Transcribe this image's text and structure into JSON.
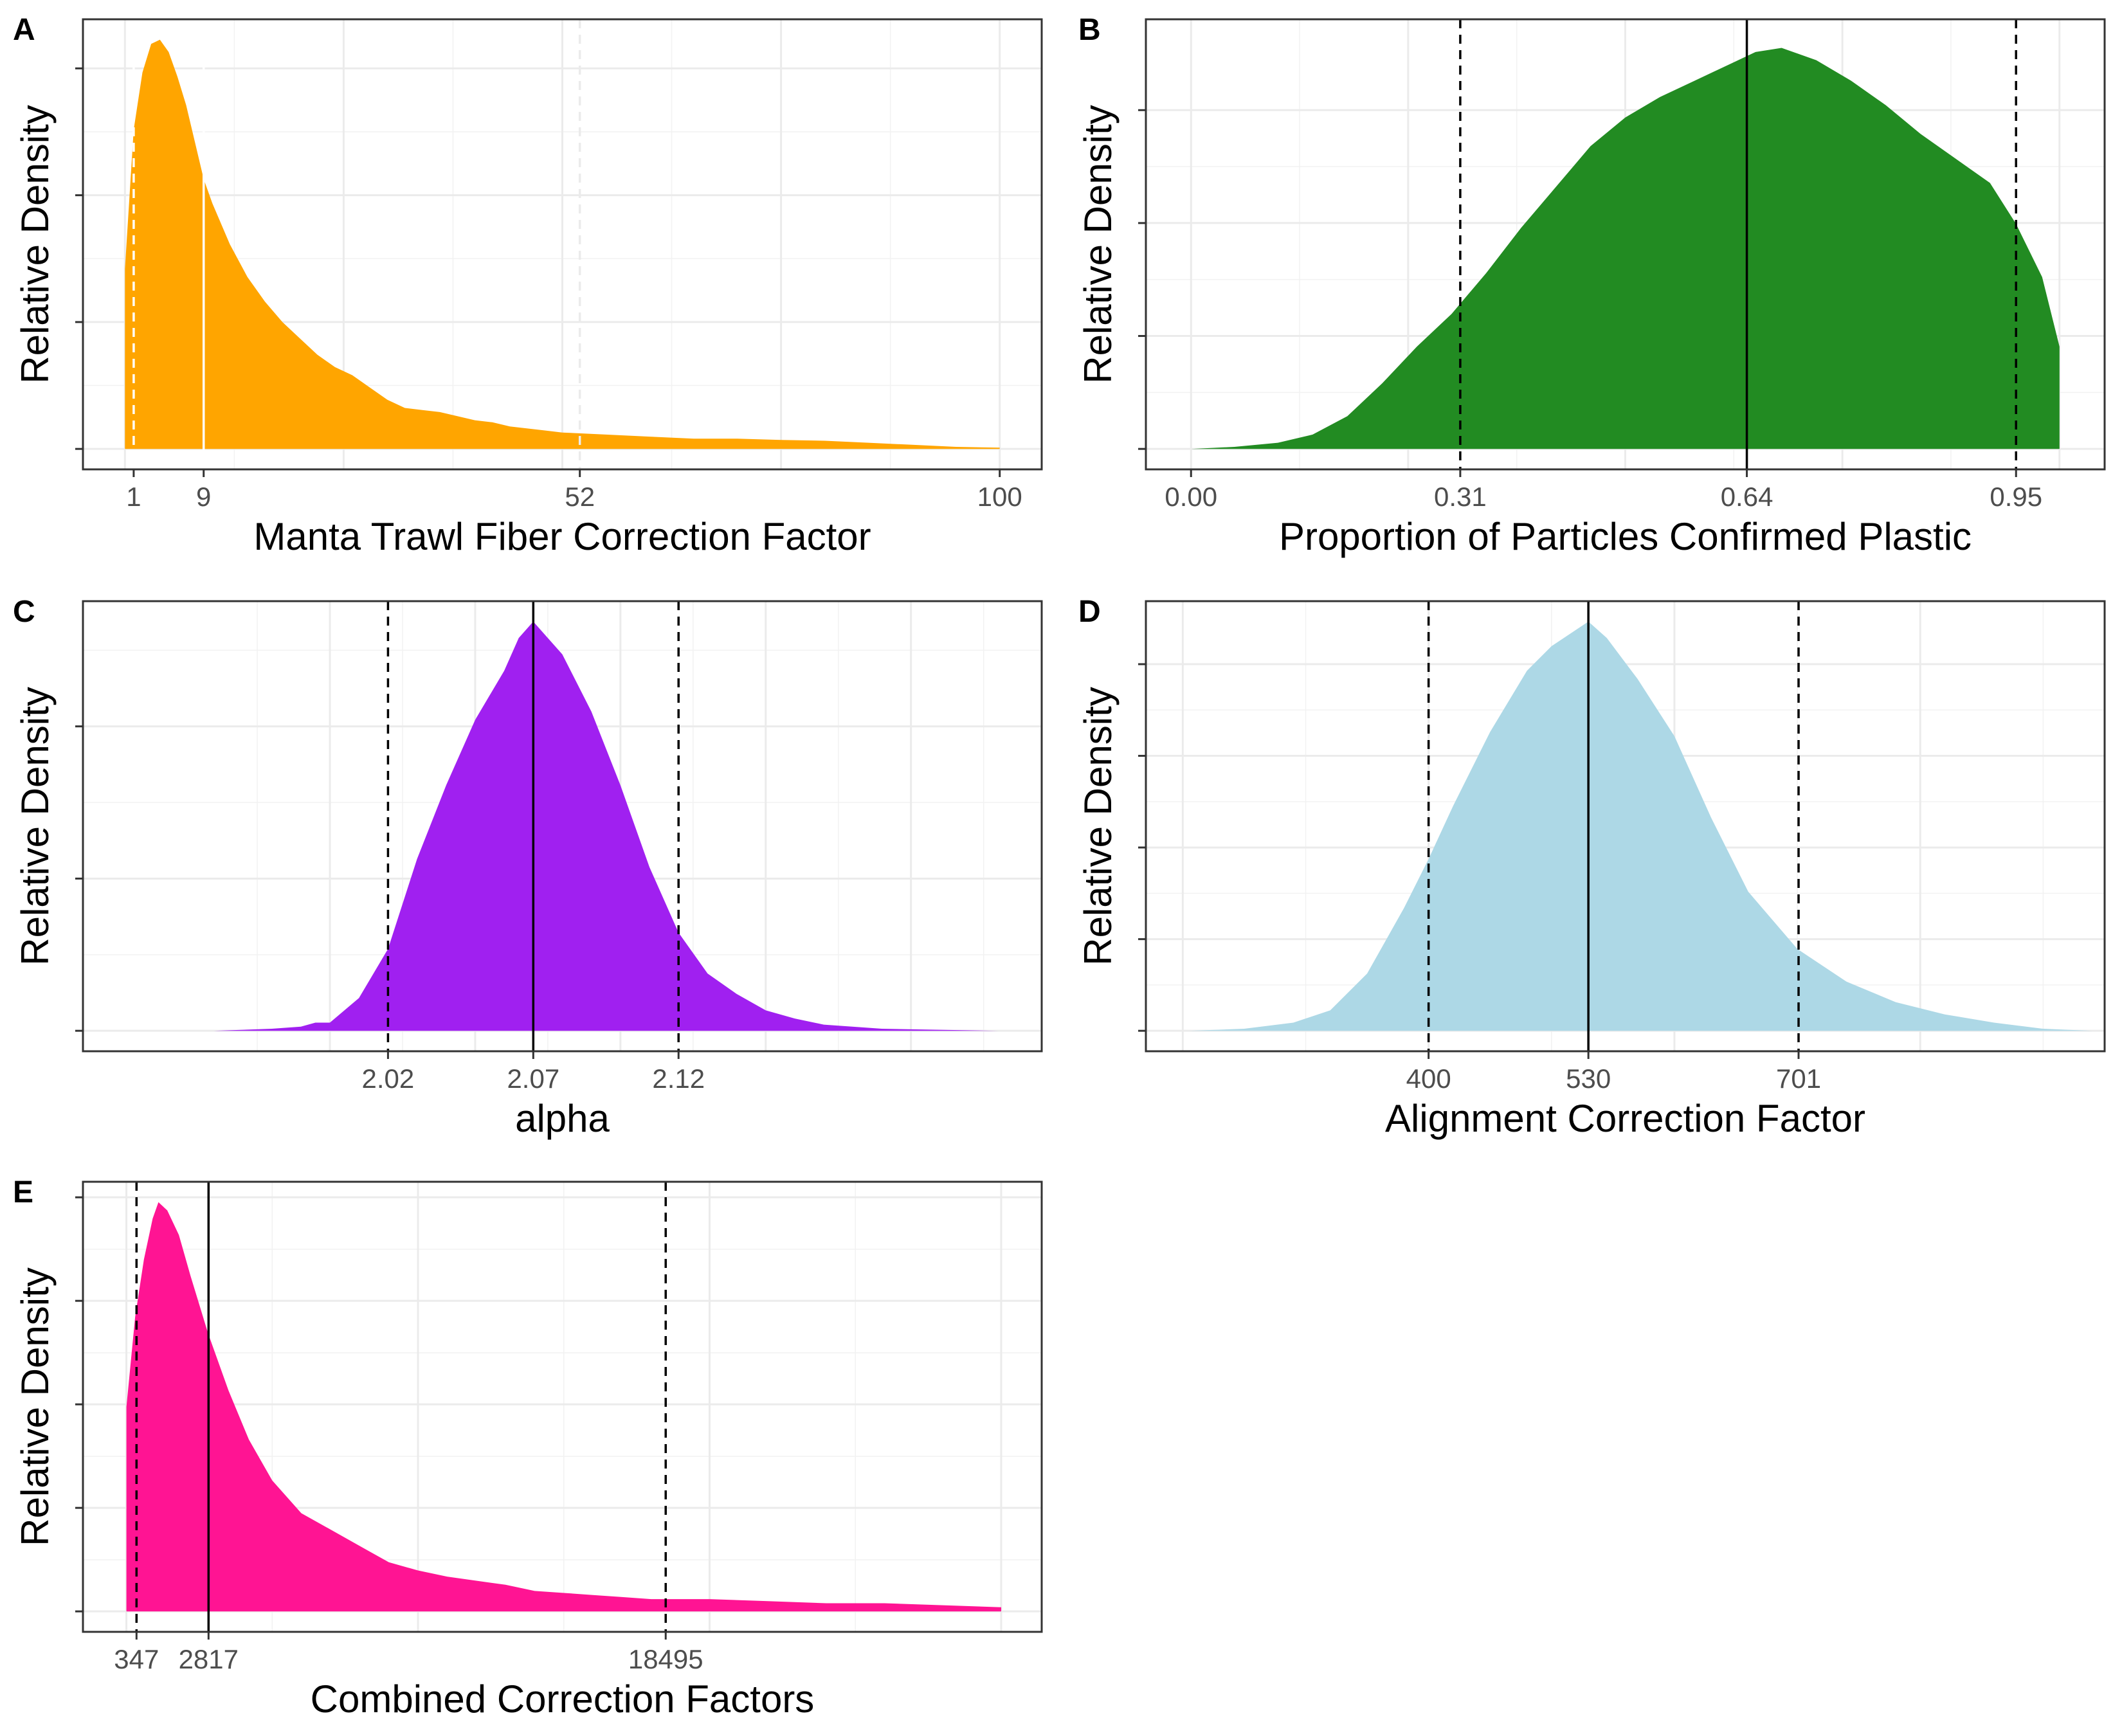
{
  "figure": {
    "background": "#ffffff",
    "grid_major_color": "#ebebeb",
    "grid_minor_color": "#f2f2f2",
    "frame_color": "#333333"
  },
  "chart_data": [
    {
      "panel": "A",
      "type": "area",
      "xlabel": "Manta Trawl Fiber Correction Factor",
      "ylabel": "Relative Density",
      "fill": "#ffa500",
      "xlim": [
        -4.8,
        104.8
      ],
      "ylim": [
        -0.05,
        1.05
      ],
      "xticks": [
        1,
        9,
        52,
        100
      ],
      "xtick_labels": [
        "1",
        "9",
        "52",
        "100"
      ],
      "grid_major_x": [
        0,
        25,
        50,
        75,
        100
      ],
      "grid_minor_x": [
        12.5,
        37.5,
        62.5,
        87.5
      ],
      "yticks": [
        0,
        0.31,
        0.62,
        0.93
      ],
      "grid_minor_y": [
        0.155,
        0.465,
        0.775
      ],
      "vlines": [
        {
          "x": 1,
          "style": "dashed",
          "color": "#ffffff"
        },
        {
          "x": 9,
          "style": "solid",
          "color": "#ffffff"
        },
        {
          "x": 52,
          "style": "dashed",
          "color": "#ebebeb"
        }
      ],
      "x": [
        0,
        1,
        2,
        3,
        4,
        5,
        6,
        7,
        8,
        9,
        10,
        12,
        14,
        16,
        18,
        20,
        22,
        24,
        26,
        28,
        30,
        32,
        34,
        36,
        38,
        40,
        42,
        44,
        46,
        48,
        50,
        55,
        60,
        65,
        70,
        75,
        80,
        85,
        90,
        95,
        100
      ],
      "y": [
        0.44,
        0.78,
        0.92,
        0.99,
        1.0,
        0.97,
        0.91,
        0.84,
        0.75,
        0.66,
        0.6,
        0.5,
        0.42,
        0.36,
        0.31,
        0.27,
        0.23,
        0.2,
        0.18,
        0.15,
        0.12,
        0.1,
        0.095,
        0.09,
        0.08,
        0.07,
        0.065,
        0.055,
        0.05,
        0.045,
        0.04,
        0.035,
        0.03,
        0.025,
        0.025,
        0.022,
        0.02,
        0.015,
        0.01,
        0.005,
        0.003
      ]
    },
    {
      "panel": "B",
      "type": "area",
      "xlabel": "Proportion of Particles Confirmed Plastic",
      "ylabel": "Relative Density",
      "fill": "#228b22",
      "xlim": [
        -0.052,
        1.052
      ],
      "ylim": [
        -0.05,
        1.05
      ],
      "xticks": [
        0.0,
        0.31,
        0.64,
        0.95
      ],
      "xtick_labels": [
        "0.00",
        "0.31",
        "0.64",
        "0.95"
      ],
      "grid_major_x": [
        0,
        0.25,
        0.5,
        0.75,
        1.0
      ],
      "grid_minor_x": [
        0.125,
        0.375,
        0.625,
        0.875
      ],
      "yticks": [
        0,
        0.276,
        0.552,
        0.828
      ],
      "grid_minor_y": [
        0.138,
        0.414,
        0.69
      ],
      "vlines": [
        {
          "x": 0.31,
          "style": "dashed",
          "color": "#000000"
        },
        {
          "x": 0.64,
          "style": "solid",
          "color": "#000000"
        },
        {
          "x": 0.95,
          "style": "dashed",
          "color": "#000000"
        }
      ],
      "x": [
        0,
        0.05,
        0.1,
        0.14,
        0.18,
        0.22,
        0.26,
        0.3,
        0.34,
        0.38,
        0.42,
        0.46,
        0.5,
        0.54,
        0.58,
        0.62,
        0.65,
        0.68,
        0.72,
        0.76,
        0.8,
        0.84,
        0.88,
        0.92,
        0.95,
        0.98,
        1.0
      ],
      "y": [
        0.0,
        0.005,
        0.015,
        0.035,
        0.08,
        0.16,
        0.25,
        0.33,
        0.43,
        0.54,
        0.64,
        0.74,
        0.81,
        0.86,
        0.9,
        0.94,
        0.97,
        0.98,
        0.95,
        0.9,
        0.84,
        0.77,
        0.71,
        0.65,
        0.55,
        0.42,
        0.25
      ]
    },
    {
      "panel": "C",
      "type": "area",
      "xlabel": "alpha",
      "ylabel": "Relative Density",
      "fill": "#a020f0",
      "xlim": [
        1.915,
        2.245
      ],
      "ylim": [
        -0.05,
        1.05
      ],
      "xticks": [
        2.02,
        2.07,
        2.12
      ],
      "xtick_labels": [
        "2.02",
        "2.07",
        "2.12"
      ],
      "grid_major_x": [
        2.0,
        2.05,
        2.1,
        2.15,
        2.2
      ],
      "grid_minor_x": [
        1.975,
        2.025,
        2.075,
        2.125,
        2.175,
        2.225
      ],
      "yticks": [
        0,
        0.372,
        0.744
      ],
      "grid_minor_y": [
        0.186,
        0.558,
        0.93
      ],
      "vlines": [
        {
          "x": 2.02,
          "style": "dashed",
          "color": "#000000"
        },
        {
          "x": 2.07,
          "style": "solid",
          "color": "#000000"
        },
        {
          "x": 2.12,
          "style": "dashed",
          "color": "#000000"
        }
      ],
      "x": [
        1.93,
        1.96,
        1.98,
        1.99,
        1.995,
        2.0,
        2.005,
        2.01,
        2.02,
        2.03,
        2.04,
        2.05,
        2.06,
        2.065,
        2.07,
        2.075,
        2.08,
        2.09,
        2.1,
        2.11,
        2.12,
        2.13,
        2.14,
        2.15,
        2.16,
        2.17,
        2.19,
        2.23
      ],
      "y": [
        0.0,
        0.0,
        0.005,
        0.01,
        0.02,
        0.02,
        0.05,
        0.08,
        0.2,
        0.42,
        0.6,
        0.76,
        0.88,
        0.96,
        1.0,
        0.96,
        0.92,
        0.78,
        0.6,
        0.4,
        0.24,
        0.14,
        0.09,
        0.05,
        0.03,
        0.015,
        0.005,
        0.0
      ]
    },
    {
      "panel": "D",
      "type": "area",
      "xlabel": "Alignment Correction Factor",
      "ylabel": "Relative Density",
      "fill": "#add8e6",
      "xlim": [
        170,
        950
      ],
      "ylim": [
        -0.05,
        1.05
      ],
      "xticks": [
        400,
        530,
        701
      ],
      "xtick_labels": [
        "400",
        "530",
        "701"
      ],
      "grid_major_x": [
        200,
        400,
        600,
        800
      ],
      "grid_minor_x": [
        300,
        500,
        700,
        900
      ],
      "yticks": [
        0,
        0.224,
        0.448,
        0.672,
        0.896
      ],
      "grid_minor_y": [
        0.112,
        0.336,
        0.56,
        0.784
      ],
      "vlines": [
        {
          "x": 400,
          "style": "dashed",
          "color": "#000000"
        },
        {
          "x": 530,
          "style": "solid",
          "color": "#000000"
        },
        {
          "x": 701,
          "style": "dashed",
          "color": "#000000"
        }
      ],
      "x": [
        205,
        250,
        290,
        320,
        350,
        380,
        400,
        420,
        450,
        480,
        500,
        520,
        530,
        545,
        570,
        600,
        630,
        660,
        700,
        740,
        780,
        820,
        860,
        900,
        940
      ],
      "y": [
        0.0,
        0.005,
        0.02,
        0.05,
        0.14,
        0.3,
        0.42,
        0.55,
        0.73,
        0.88,
        0.94,
        0.98,
        1.0,
        0.96,
        0.86,
        0.72,
        0.52,
        0.34,
        0.2,
        0.12,
        0.07,
        0.04,
        0.02,
        0.005,
        0.0
      ]
    },
    {
      "panel": "E",
      "type": "area",
      "xlabel": "Combined Correction Factors",
      "ylabel": "Relative Density",
      "fill": "#ff1493",
      "xlim": [
        -1490,
        31390
      ],
      "ylim": [
        -0.05,
        1.05
      ],
      "xticks": [
        347,
        2817,
        18495
      ],
      "xtick_labels": [
        "347",
        "2817",
        "18495"
      ],
      "grid_major_x": [
        0,
        10000,
        20000,
        30000
      ],
      "grid_minor_x": [
        5000,
        15000,
        25000
      ],
      "yticks": [
        0,
        0.253,
        0.506,
        0.759,
        1.012
      ],
      "grid_minor_y": [
        0.126,
        0.379,
        0.632,
        0.885
      ],
      "vlines": [
        {
          "x": 347,
          "style": "dashed",
          "color": "#000000"
        },
        {
          "x": 2817,
          "style": "solid",
          "color": "#000000"
        },
        {
          "x": 18495,
          "style": "dashed",
          "color": "#000000"
        }
      ],
      "x": [
        0,
        300,
        600,
        900,
        1100,
        1400,
        1800,
        2200,
        2800,
        3500,
        4200,
        5000,
        6000,
        7000,
        8000,
        9000,
        10000,
        11000,
        12000,
        13000,
        14000,
        15000,
        16000,
        17000,
        18000,
        19000,
        20000,
        22000,
        24000,
        26000,
        28000,
        30000
      ],
      "y": [
        0.5,
        0.72,
        0.86,
        0.96,
        1.0,
        0.98,
        0.92,
        0.82,
        0.68,
        0.54,
        0.42,
        0.32,
        0.24,
        0.2,
        0.16,
        0.12,
        0.1,
        0.085,
        0.075,
        0.065,
        0.05,
        0.045,
        0.04,
        0.035,
        0.03,
        0.03,
        0.03,
        0.025,
        0.02,
        0.02,
        0.015,
        0.01
      ]
    }
  ]
}
